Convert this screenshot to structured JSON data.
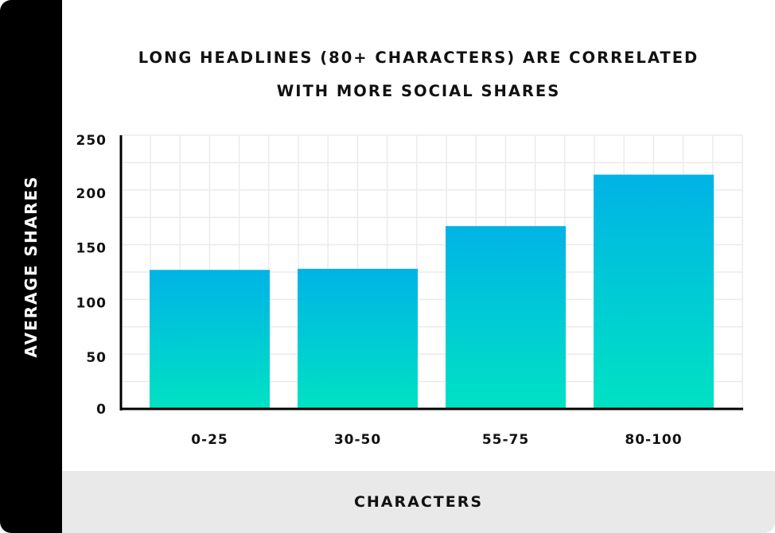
{
  "chart_data": {
    "type": "bar",
    "title": "LONG HEADLINES (80+ CHARACTERS) ARE CORRELATED WITH MORE SOCIAL SHARES",
    "title_lines": [
      "LONG HEADLINES (80+ CHARACTERS) ARE CORRELATED",
      "WITH MORE SOCIAL SHARES"
    ],
    "xlabel": "CHARACTERS",
    "ylabel": "AVERAGE SHARES",
    "categories": [
      "0-25",
      "30-50",
      "55-75",
      "80-100"
    ],
    "values": [
      127,
      128,
      167,
      214
    ],
    "ylim": [
      0,
      250
    ],
    "yticks": [
      0,
      50,
      100,
      150,
      200,
      250
    ],
    "grid": true,
    "colors": {
      "bar_top": "#00b3e6",
      "bar_bottom": "#00e2c3",
      "axis": "#000000",
      "grid": "#ebebeb"
    }
  }
}
